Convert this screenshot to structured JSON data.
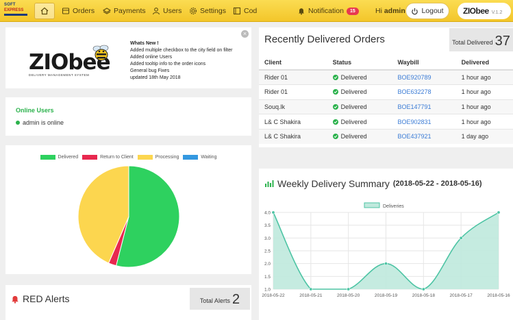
{
  "navbar": {
    "brand_line1": "SOFT",
    "brand_line2": "EXPRESS",
    "items": [
      {
        "label": "Orders",
        "icon": "list-icon"
      },
      {
        "label": "Payments",
        "icon": "payments-icon"
      },
      {
        "label": "Users",
        "icon": "users-icon"
      },
      {
        "label": "Settings",
        "icon": "gear-icon"
      },
      {
        "label": "Cod",
        "icon": "cod-icon"
      }
    ],
    "notification_label": "Notification",
    "notification_count": "15",
    "greeting": "Hi",
    "username": "admin",
    "logout_label": "Logout",
    "logo_text": "ZIObee",
    "version": "V.1.2"
  },
  "news": {
    "logo_text": "ZIObee",
    "logo_subtitle": "DELIVERY MANAGEMENT SYSTEM",
    "title": "Whats New !",
    "lines": [
      "Added multiple checkbox to the city field on filter",
      "Added online Users",
      "Added tooltip info to the order icons",
      "General bug Fixes",
      "updated 18th May 2018"
    ]
  },
  "online": {
    "title": "Online Users",
    "users": [
      "admin is online"
    ]
  },
  "pie": {
    "legend": [
      {
        "label": "Delivered",
        "color": "#2ed15f"
      },
      {
        "label": "Return to Client",
        "color": "#e8284f"
      },
      {
        "label": "Processing",
        "color": "#fcd64f"
      },
      {
        "label": "Waiting",
        "color": "#3498e0"
      }
    ],
    "values": [
      54,
      2.5,
      43.5,
      0
    ]
  },
  "red_alerts": {
    "title": "RED Alerts",
    "total_label": "Total Alerts",
    "total_value": "2"
  },
  "orders": {
    "title": "Recently Delivered Orders",
    "total_label": "Total Delivered",
    "total_value": "37",
    "columns": [
      "Client",
      "Status",
      "Waybill",
      "Delivered"
    ],
    "rows": [
      {
        "client": "Rider 01",
        "status": "Delivered",
        "waybill": "BOE920789",
        "delivered": "1 hour ago"
      },
      {
        "client": "Rider 01",
        "status": "Delivered",
        "waybill": "BOE632278",
        "delivered": "1 hour ago"
      },
      {
        "client": "Souq.lk",
        "status": "Delivered",
        "waybill": "BOE147791",
        "delivered": "1 hour ago"
      },
      {
        "client": "L& C Shakira",
        "status": "Delivered",
        "waybill": "BOE902831",
        "delivered": "1 hour ago"
      },
      {
        "client": "L& C Shakira",
        "status": "Delivered",
        "waybill": "BOE437921",
        "delivered": "1 day ago"
      }
    ]
  },
  "weekly": {
    "title": "Weekly Delivery Summary",
    "range": "(2018-05-22 - 2018-05-16)"
  },
  "chart_data": [
    {
      "type": "pie",
      "categories": [
        "Delivered",
        "Return to Client",
        "Processing",
        "Waiting"
      ],
      "values": [
        54,
        2.5,
        43.5,
        0
      ],
      "legend": "top"
    },
    {
      "type": "area",
      "series": [
        {
          "name": "Deliveries",
          "values": [
            4.0,
            1.0,
            1.0,
            2.0,
            1.0,
            3.0,
            4.0
          ]
        }
      ],
      "categories": [
        "2018-05-22",
        "2018-05-21",
        "2018-05-20",
        "2018-05-19",
        "2018-05-18",
        "2018-05-17",
        "2018-05-16"
      ],
      "yticks": [
        "1.0",
        "1.5",
        "2.0",
        "2.5",
        "3.0",
        "3.5",
        "4.0"
      ],
      "ylim": [
        1.0,
        4.0
      ],
      "grid": true,
      "legend": "top",
      "color": "#4dc4a4"
    }
  ]
}
